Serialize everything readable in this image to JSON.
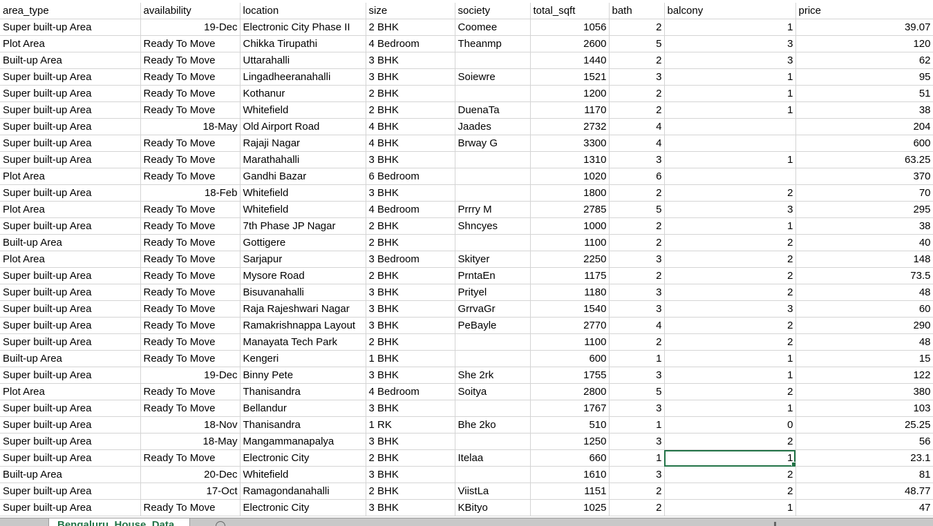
{
  "sheet": {
    "tab_label": "Bengaluru_House_Data",
    "columns": [
      "area_type",
      "availability",
      "location",
      "size",
      "society",
      "total_sqft",
      "bath",
      "balcony",
      "price"
    ],
    "rows": [
      [
        "Super built-up  Area",
        "19-Dec",
        "Electronic City Phase II",
        "2 BHK",
        "Coomee",
        "1056",
        "2",
        "1",
        "39.07"
      ],
      [
        "Plot  Area",
        "Ready To Move",
        "Chikka Tirupathi",
        "4 Bedroom",
        "Theanmp",
        "2600",
        "5",
        "3",
        "120"
      ],
      [
        "Built-up  Area",
        "Ready To Move",
        "Uttarahalli",
        "3 BHK",
        "",
        "1440",
        "2",
        "3",
        "62"
      ],
      [
        "Super built-up  Area",
        "Ready To Move",
        "Lingadheeranahalli",
        "3 BHK",
        "Soiewre",
        "1521",
        "3",
        "1",
        "95"
      ],
      [
        "Super built-up  Area",
        "Ready To Move",
        "Kothanur",
        "2 BHK",
        "",
        "1200",
        "2",
        "1",
        "51"
      ],
      [
        "Super built-up  Area",
        "Ready To Move",
        "Whitefield",
        "2 BHK",
        "DuenaTa",
        "1170",
        "2",
        "1",
        "38"
      ],
      [
        "Super built-up  Area",
        "18-May",
        "Old Airport Road",
        "4 BHK",
        "Jaades",
        "2732",
        "4",
        "",
        "204"
      ],
      [
        "Super built-up  Area",
        "Ready To Move",
        "Rajaji Nagar",
        "4 BHK",
        "Brway G",
        "3300",
        "4",
        "",
        "600"
      ],
      [
        "Super built-up  Area",
        "Ready To Move",
        "Marathahalli",
        "3 BHK",
        "",
        "1310",
        "3",
        "1",
        "63.25"
      ],
      [
        "Plot  Area",
        "Ready To Move",
        "Gandhi Bazar",
        "6 Bedroom",
        "",
        "1020",
        "6",
        "",
        "370"
      ],
      [
        "Super built-up  Area",
        "18-Feb",
        "Whitefield",
        "3 BHK",
        "",
        "1800",
        "2",
        "2",
        "70"
      ],
      [
        "Plot  Area",
        "Ready To Move",
        "Whitefield",
        "4 Bedroom",
        "Prrry M",
        "2785",
        "5",
        "3",
        "295"
      ],
      [
        "Super built-up  Area",
        "Ready To Move",
        "7th Phase JP Nagar",
        "2 BHK",
        "Shncyes",
        "1000",
        "2",
        "1",
        "38"
      ],
      [
        "Built-up  Area",
        "Ready To Move",
        "Gottigere",
        "2 BHK",
        "",
        "1100",
        "2",
        "2",
        "40"
      ],
      [
        "Plot  Area",
        "Ready To Move",
        "Sarjapur",
        "3 Bedroom",
        "Skityer",
        "2250",
        "3",
        "2",
        "148"
      ],
      [
        "Super built-up  Area",
        "Ready To Move",
        "Mysore Road",
        "2 BHK",
        "PrntaEn",
        "1175",
        "2",
        "2",
        "73.5"
      ],
      [
        "Super built-up  Area",
        "Ready To Move",
        "Bisuvanahalli",
        "3 BHK",
        "Prityel",
        "1180",
        "3",
        "2",
        "48"
      ],
      [
        "Super built-up  Area",
        "Ready To Move",
        "Raja Rajeshwari Nagar",
        "3 BHK",
        "GrrvaGr",
        "1540",
        "3",
        "3",
        "60"
      ],
      [
        "Super built-up  Area",
        "Ready To Move",
        "Ramakrishnappa Layout",
        "3 BHK",
        "PeBayle",
        "2770",
        "4",
        "2",
        "290"
      ],
      [
        "Super built-up  Area",
        "Ready To Move",
        "Manayata Tech Park",
        "2 BHK",
        "",
        "1100",
        "2",
        "2",
        "48"
      ],
      [
        "Built-up  Area",
        "Ready To Move",
        "Kengeri",
        "1 BHK",
        "",
        "600",
        "1",
        "1",
        "15"
      ],
      [
        "Super built-up  Area",
        "19-Dec",
        "Binny Pete",
        "3 BHK",
        "She 2rk",
        "1755",
        "3",
        "1",
        "122"
      ],
      [
        "Plot  Area",
        "Ready To Move",
        "Thanisandra",
        "4 Bedroom",
        "Soitya",
        "2800",
        "5",
        "2",
        "380"
      ],
      [
        "Super built-up  Area",
        "Ready To Move",
        "Bellandur",
        "3 BHK",
        "",
        "1767",
        "3",
        "1",
        "103"
      ],
      [
        "Super built-up  Area",
        "18-Nov",
        " Thanisandra",
        "1 RK",
        "Bhe 2ko",
        "510",
        "1",
        "0",
        "25.25"
      ],
      [
        "Super built-up  Area",
        "18-May",
        "Mangammanapalya",
        "3 BHK",
        "",
        "1250",
        "3",
        "2",
        "56"
      ],
      [
        "Super built-up  Area",
        "Ready To Move",
        "Electronic City",
        "2 BHK",
        "Itelaa",
        "660",
        "1",
        "1",
        "23.1"
      ],
      [
        "Built-up  Area",
        "20-Dec",
        "Whitefield",
        "3 BHK",
        "",
        "1610",
        "3",
        "2",
        "81"
      ],
      [
        "Super built-up  Area",
        "17-Oct",
        "Ramagondanahalli",
        "2 BHK",
        "ViistLa",
        "1151",
        "2",
        "2",
        "48.77"
      ],
      [
        "Super built-up  Area",
        "Ready To Move",
        "Electronic City",
        "3 BHK",
        "KBityo",
        "1025",
        "2",
        "1",
        "47"
      ]
    ],
    "selected_cell": {
      "row": 26,
      "col": 7
    },
    "accent_color": "#217346",
    "gridline_color": "#d4d4d4"
  }
}
